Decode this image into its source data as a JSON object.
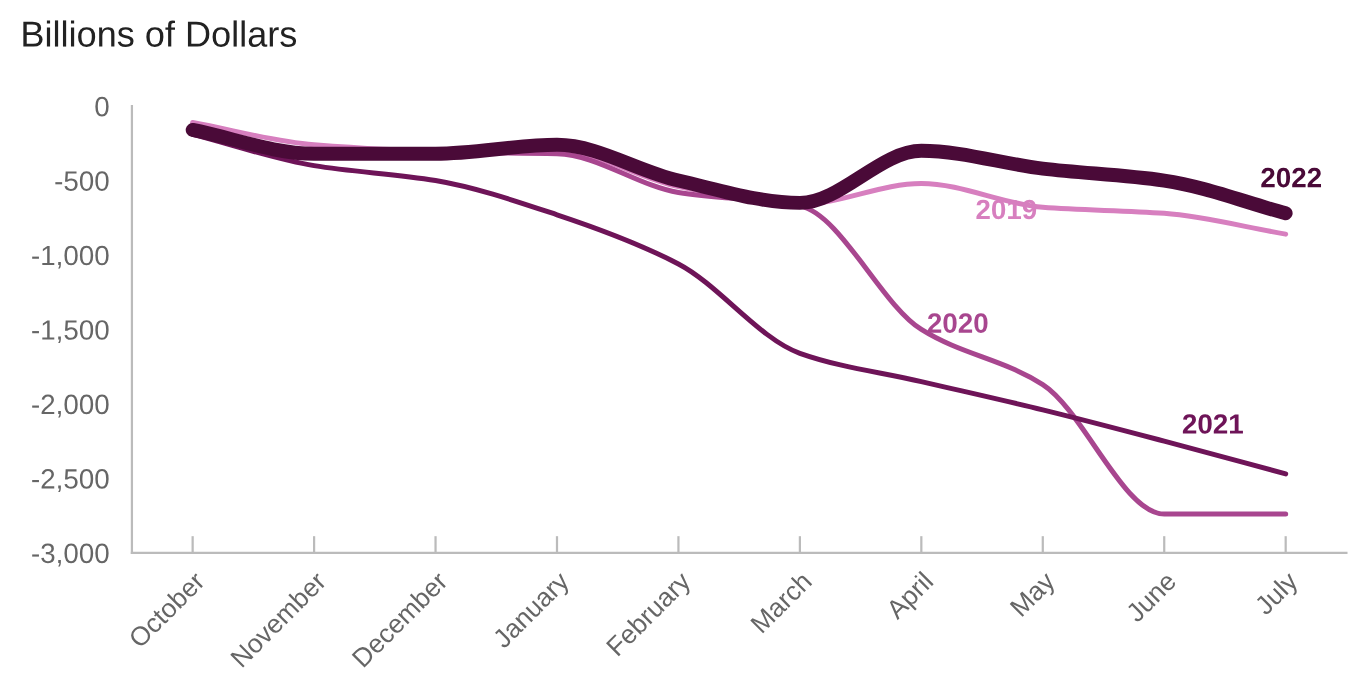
{
  "chart_data": {
    "type": "line",
    "ylabel": "Billions of Dollars",
    "categories": [
      "October",
      "November",
      "December",
      "January",
      "February",
      "March",
      "April",
      "May",
      "June",
      "July"
    ],
    "series": [
      {
        "name": "2019",
        "color": "#d77fbf",
        "values": [
          -110,
          -260,
          -300,
          -300,
          -540,
          -660,
          -520,
          -680,
          -720,
          -860
        ]
      },
      {
        "name": "2020",
        "color": "#a8468f",
        "values": [
          -150,
          -300,
          -310,
          -320,
          -580,
          -670,
          -1500,
          -1870,
          -2740,
          -2740
        ]
      },
      {
        "name": "2021",
        "color": "#6e1458",
        "values": [
          -190,
          -400,
          -500,
          -730,
          -1060,
          -1660,
          -1850,
          -2040,
          -2250,
          -2470
        ]
      },
      {
        "name": "2022",
        "color": "#4a0a38",
        "values": [
          -160,
          -320,
          -320,
          -260,
          -500,
          -650,
          -300,
          -420,
          -500,
          -720
        ]
      }
    ],
    "ylim": [
      -3000,
      0
    ],
    "yticks": [
      {
        "value": -3000,
        "label": "-3,000"
      },
      {
        "value": -2500,
        "label": "-2,500"
      },
      {
        "value": -2000,
        "label": "-2,000"
      },
      {
        "value": -1500,
        "label": "-1,500"
      },
      {
        "value": -1000,
        "label": "-1,000"
      },
      {
        "value": -500,
        "label": "-500"
      },
      0
    ],
    "grid": false,
    "legend": false,
    "marker": "none",
    "line_style": "solid"
  }
}
